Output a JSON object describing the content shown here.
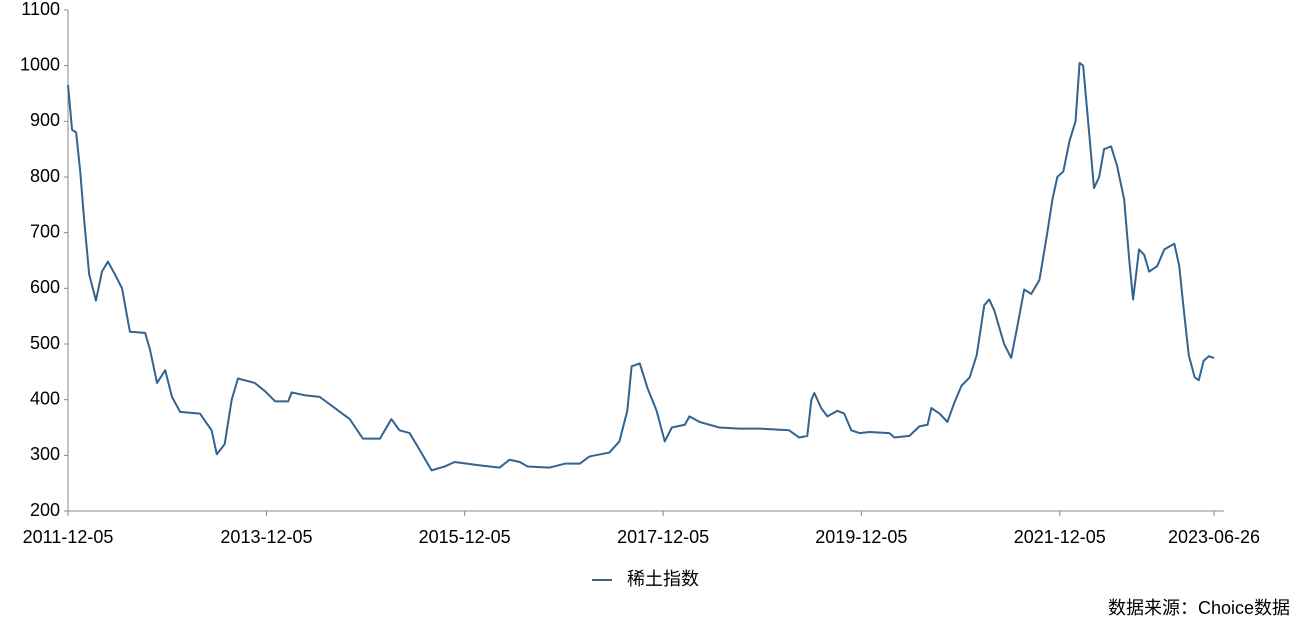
{
  "chart_data": {
    "type": "line",
    "x": [
      "2011-12-05",
      "2011-12-20",
      "2012-01-04",
      "2012-01-19",
      "2012-02-03",
      "2012-02-21",
      "2012-03-17",
      "2012-04-08",
      "2012-04-30",
      "2012-05-26",
      "2012-06-21",
      "2012-07-20",
      "2012-09-14",
      "2012-10-02",
      "2012-10-28",
      "2012-11-27",
      "2012-12-22",
      "2013-01-21",
      "2013-04-04",
      "2013-05-17",
      "2013-06-05",
      "2013-07-04",
      "2013-07-30",
      "2013-08-22",
      "2013-10-23",
      "2013-11-30",
      "2014-01-06",
      "2014-02-23",
      "2014-03-08",
      "2014-04-25",
      "2014-06-19",
      "2014-08-14",
      "2014-10-08",
      "2014-11-25",
      "2015-01-27",
      "2015-03-10",
      "2015-04-09",
      "2015-05-16",
      "2015-06-22",
      "2015-08-05",
      "2015-09-23",
      "2015-10-29",
      "2016-01-30",
      "2016-04-12",
      "2016-05-18",
      "2016-06-25",
      "2016-07-24",
      "2016-10-13",
      "2016-12-08",
      "2017-02-01",
      "2017-03-09",
      "2017-05-21",
      "2017-06-27",
      "2017-07-26",
      "2017-08-11",
      "2017-09-10",
      "2017-10-09",
      "2017-11-11",
      "2017-12-11",
      "2018-01-06",
      "2018-02-23",
      "2018-03-12",
      "2018-04-18",
      "2018-06-30",
      "2018-09-12",
      "2018-11-25",
      "2019-03-14",
      "2019-04-20",
      "2019-05-20",
      "2019-06-04",
      "2019-06-15",
      "2019-07-10",
      "2019-08-02",
      "2019-09-08",
      "2019-10-03",
      "2019-10-29",
      "2019-11-28",
      "2020-01-04",
      "2020-03-17",
      "2020-04-05",
      "2020-05-30",
      "2020-07-06",
      "2020-08-05",
      "2020-08-19",
      "2020-09-18",
      "2020-10-17",
      "2020-11-12",
      "2020-12-08",
      "2021-01-07",
      "2021-02-02",
      "2021-03-02",
      "2021-03-20",
      "2021-04-08",
      "2021-05-14",
      "2021-06-09",
      "2021-07-01",
      "2021-07-27",
      "2021-08-22",
      "2021-09-21",
      "2021-10-20",
      "2021-11-08",
      "2021-11-26",
      "2021-12-18",
      "2022-01-10",
      "2022-02-01",
      "2022-02-16",
      "2022-03-01",
      "2022-03-23",
      "2022-04-10",
      "2022-04-29",
      "2022-05-17",
      "2022-06-12",
      "2022-07-04",
      "2022-07-30",
      "2022-08-18",
      "2022-09-01",
      "2022-09-23",
      "2022-10-12",
      "2022-10-30",
      "2022-11-29",
      "2022-12-25",
      "2023-01-31",
      "2023-02-18",
      "2023-03-07",
      "2023-03-25",
      "2023-04-16",
      "2023-05-01",
      "2023-05-19",
      "2023-06-07",
      "2023-06-26"
    ],
    "series": [
      {
        "name": "稀土指数",
        "color": "#33638f",
        "values": [
          965,
          885,
          880,
          810,
          720,
          625,
          578,
          630,
          648,
          625,
          600,
          522,
          520,
          490,
          430,
          453,
          405,
          378,
          375,
          345,
          302,
          320,
          400,
          438,
          430,
          415,
          397,
          397,
          413,
          408,
          405,
          385,
          365,
          330,
          330,
          365,
          345,
          340,
          310,
          273,
          280,
          288,
          282,
          278,
          292,
          288,
          280,
          278,
          285,
          285,
          298,
          305,
          325,
          380,
          460,
          465,
          420,
          380,
          325,
          350,
          355,
          370,
          360,
          350,
          348,
          348,
          345,
          332,
          335,
          400,
          412,
          385,
          370,
          380,
          375,
          345,
          340,
          342,
          340,
          332,
          335,
          352,
          355,
          385,
          375,
          360,
          395,
          425,
          440,
          480,
          570,
          580,
          560,
          500,
          475,
          530,
          598,
          590,
          615,
          700,
          760,
          800,
          810,
          865,
          900,
          1005,
          1000,
          880,
          780,
          800,
          850,
          855,
          820,
          760,
          650,
          580,
          670,
          660,
          630,
          640,
          670,
          680,
          640,
          560,
          480,
          440,
          435,
          470,
          478,
          475
        ]
      }
    ],
    "xlim": [
      "2011-12-05",
      "2023-06-26"
    ],
    "xticks": [
      "2011-12-05",
      "2013-12-05",
      "2015-12-05",
      "2017-12-05",
      "2019-12-05",
      "2021-12-05",
      "2023-06-26"
    ],
    "ylim": [
      200,
      1100
    ],
    "yticks": [
      200,
      300,
      400,
      500,
      600,
      700,
      800,
      900,
      1000,
      1100
    ],
    "grid": false,
    "legend": "bottom",
    "source": "数据来源：Choice数据"
  }
}
